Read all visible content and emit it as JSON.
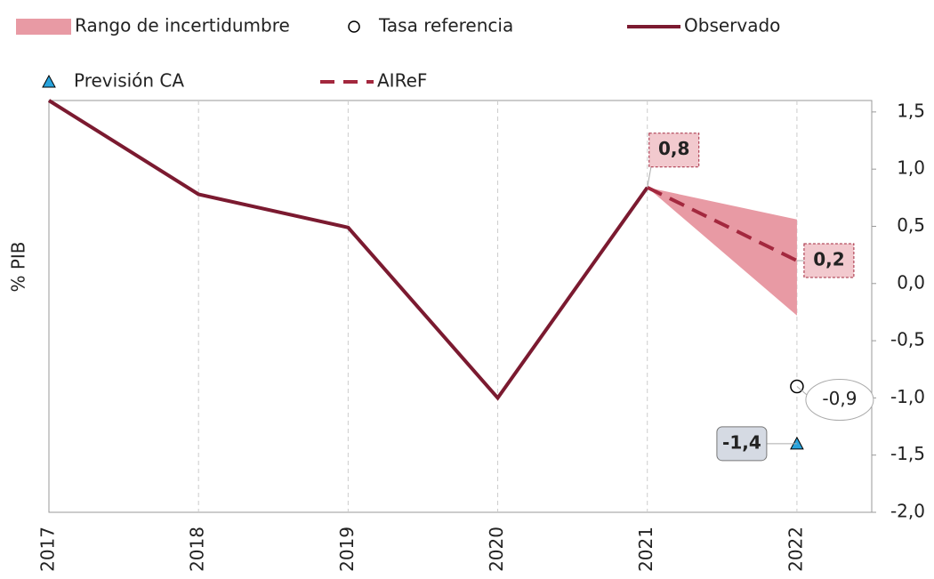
{
  "chart_data": {
    "type": "line",
    "y_label": "% PIB",
    "x": [
      2017,
      2018,
      2019,
      2020,
      2021,
      2022
    ],
    "xlim": [
      2017,
      2022.5
    ],
    "xticks": [
      2017,
      2018,
      2019,
      2020,
      2021,
      2022
    ],
    "ylim": [
      -2.0,
      1.6
    ],
    "yticks": [
      {
        "value": -2.0,
        "label": "-2,0"
      },
      {
        "value": -1.5,
        "label": "-1,5"
      },
      {
        "value": -1.0,
        "label": "-1,0"
      },
      {
        "value": -0.5,
        "label": "-0,5"
      },
      {
        "value": 0.0,
        "label": "0,0"
      },
      {
        "value": 0.5,
        "label": "0,5"
      },
      {
        "value": 1.0,
        "label": "1,0"
      },
      {
        "value": 1.5,
        "label": "1,5"
      }
    ],
    "y_axis_side": "right",
    "grid": "x",
    "series": [
      {
        "name": "Rango de incertidumbre",
        "kind": "band",
        "color": "#e89aa4",
        "low": [
          null,
          null,
          null,
          null,
          0.84,
          -0.28
        ],
        "high": [
          null,
          null,
          null,
          null,
          0.84,
          0.56
        ]
      },
      {
        "name": "Tasa referencia",
        "kind": "circle",
        "color": "#ffffff",
        "values": [
          null,
          null,
          null,
          null,
          null,
          -0.9
        ],
        "value_labels": [
          null,
          null,
          null,
          null,
          null,
          "-0,9"
        ]
      },
      {
        "name": "Observado",
        "kind": "solid",
        "color": "#7b1a30",
        "values": [
          1.6,
          0.78,
          0.49,
          -1.0,
          0.84,
          null
        ],
        "value_labels": [
          null,
          null,
          null,
          null,
          "0,8",
          null
        ]
      },
      {
        "name": "Previsión CA",
        "kind": "triangle",
        "color": "#29a3dc",
        "values": [
          null,
          null,
          null,
          null,
          null,
          -1.4
        ],
        "value_labels": [
          null,
          null,
          null,
          null,
          null,
          "-1,4"
        ]
      },
      {
        "name": "AIReF",
        "kind": "dashed",
        "color": "#a3283e",
        "values": [
          null,
          null,
          null,
          null,
          0.84,
          0.2
        ],
        "value_labels": [
          null,
          null,
          null,
          null,
          null,
          "0,2"
        ]
      }
    ]
  }
}
